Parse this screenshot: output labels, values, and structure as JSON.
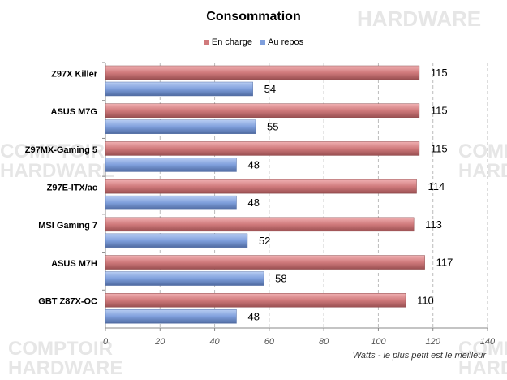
{
  "watermark": "Le COMPTOIR du HARDWARE",
  "chart_data": {
    "type": "bar",
    "orientation": "horizontal",
    "title": "Consommation",
    "xlabel": "Watts - le plus petit est le meilleur",
    "ylabel": "",
    "xlim": [
      0,
      140
    ],
    "xticks": [
      0,
      20,
      40,
      60,
      80,
      100,
      120,
      140
    ],
    "grid": true,
    "legend": "top",
    "categories": [
      "Z97X Killer",
      "ASUS M7G",
      "Z97MX-Gaming 5",
      "Z97E-ITX/ac",
      "MSI Gaming 7",
      "ASUS M7H",
      "GBT Z87X-OC"
    ],
    "series": [
      {
        "name": "En charge",
        "color": "#d07a7c",
        "values": [
          115,
          115,
          115,
          114,
          113,
          117,
          110
        ]
      },
      {
        "name": "Au repos",
        "color": "#7f9fdc",
        "values": [
          54,
          55,
          48,
          48,
          52,
          58,
          48
        ]
      }
    ]
  }
}
